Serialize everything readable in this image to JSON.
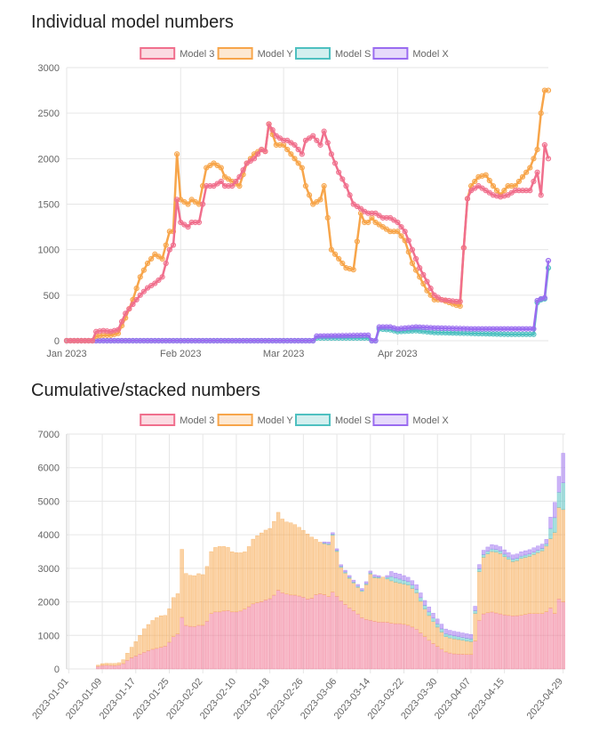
{
  "section1": {
    "title": "Individual model numbers"
  },
  "section2": {
    "title": "Cumulative/stacked numbers"
  },
  "colors": {
    "Model 3": "#f06f8d",
    "Model Y": "#f7a54a",
    "Model S": "#4ec0c0",
    "Model X": "#9a6cf0"
  },
  "chart_data": [
    {
      "type": "line",
      "title": "Individual model numbers",
      "x_start": "2023-01-01",
      "x_end": "2023-04-29",
      "x_tick_labels": [
        "Jan 2023",
        "Feb 2023",
        "Mar 2023",
        "Apr 2023"
      ],
      "x_tick_days": [
        0,
        31,
        59,
        90
      ],
      "ylim": [
        0,
        3000
      ],
      "y_ticks": [
        0,
        500,
        1000,
        1500,
        2000,
        2500,
        3000
      ],
      "legend": [
        "Model 3",
        "Model Y",
        "Model S",
        "Model X"
      ],
      "series": [
        {
          "name": "Model 3",
          "keypoints": [
            [
              0,
              0
            ],
            [
              7,
              0
            ],
            [
              8,
              100
            ],
            [
              10,
              110
            ],
            [
              12,
              100
            ],
            [
              14,
              120
            ],
            [
              16,
              300
            ],
            [
              18,
              400
            ],
            [
              20,
              500
            ],
            [
              22,
              580
            ],
            [
              24,
              630
            ],
            [
              26,
              700
            ],
            [
              28,
              1000
            ],
            [
              29,
              1050
            ],
            [
              30,
              1550
            ],
            [
              31,
              1300
            ],
            [
              33,
              1250
            ],
            [
              34,
              1300
            ],
            [
              36,
              1300
            ],
            [
              38,
              1700
            ],
            [
              40,
              1700
            ],
            [
              42,
              1750
            ],
            [
              43,
              1700
            ],
            [
              45,
              1700
            ],
            [
              47,
              1800
            ],
            [
              49,
              1950
            ],
            [
              51,
              2000
            ],
            [
              53,
              2100
            ],
            [
              54,
              2080
            ],
            [
              55,
              2380
            ],
            [
              57,
              2250
            ],
            [
              59,
              2200
            ],
            [
              60,
              2200
            ],
            [
              62,
              2150
            ],
            [
              64,
              2050
            ],
            [
              65,
              2200
            ],
            [
              67,
              2250
            ],
            [
              69,
              2150
            ],
            [
              70,
              2300
            ],
            [
              72,
              2050
            ],
            [
              74,
              1850
            ],
            [
              76,
              1700
            ],
            [
              78,
              1500
            ],
            [
              80,
              1450
            ],
            [
              81,
              1420
            ],
            [
              82,
              1400
            ],
            [
              83,
              1400
            ],
            [
              84,
              1400
            ],
            [
              86,
              1350
            ],
            [
              88,
              1350
            ],
            [
              90,
              1300
            ],
            [
              92,
              1200
            ],
            [
              94,
              1000
            ],
            [
              96,
              800
            ],
            [
              98,
              650
            ],
            [
              100,
              500
            ],
            [
              102,
              450
            ],
            [
              104,
              440
            ],
            [
              106,
              430
            ],
            [
              107,
              430
            ],
            [
              108,
              1020
            ],
            [
              109,
              1560
            ],
            [
              110,
              1650
            ],
            [
              112,
              1700
            ],
            [
              114,
              1650
            ],
            [
              116,
              1600
            ],
            [
              118,
              1580
            ],
            [
              120,
              1600
            ],
            [
              122,
              1650
            ],
            [
              124,
              1650
            ],
            [
              126,
              1650
            ],
            [
              128,
              1850
            ],
            [
              129,
              1600
            ],
            [
              130,
              2150
            ],
            [
              131,
              2000
            ]
          ]
        },
        {
          "name": "Model Y",
          "keypoints": [
            [
              0,
              0
            ],
            [
              7,
              0
            ],
            [
              8,
              50
            ],
            [
              10,
              60
            ],
            [
              12,
              60
            ],
            [
              14,
              80
            ],
            [
              16,
              250
            ],
            [
              18,
              450
            ],
            [
              20,
              700
            ],
            [
              22,
              850
            ],
            [
              24,
              950
            ],
            [
              26,
              900
            ],
            [
              28,
              1200
            ],
            [
              29,
              1200
            ],
            [
              30,
              2050
            ],
            [
              31,
              1550
            ],
            [
              33,
              1500
            ],
            [
              34,
              1550
            ],
            [
              36,
              1500
            ],
            [
              38,
              1900
            ],
            [
              40,
              1950
            ],
            [
              42,
              1900
            ],
            [
              43,
              1800
            ],
            [
              45,
              1750
            ],
            [
              47,
              1700
            ],
            [
              49,
              1950
            ],
            [
              51,
              2050
            ],
            [
              53,
              2100
            ],
            [
              54,
              2080
            ],
            [
              55,
              2380
            ],
            [
              57,
              2150
            ],
            [
              59,
              2150
            ],
            [
              60,
              2100
            ],
            [
              62,
              2000
            ],
            [
              64,
              1900
            ],
            [
              65,
              1700
            ],
            [
              67,
              1500
            ],
            [
              69,
              1550
            ],
            [
              70,
              1700
            ],
            [
              72,
              1000
            ],
            [
              74,
              900
            ],
            [
              76,
              800
            ],
            [
              78,
              780
            ],
            [
              80,
              1400
            ],
            [
              81,
              1300
            ],
            [
              82,
              1300
            ],
            [
              83,
              1350
            ],
            [
              84,
              1300
            ],
            [
              86,
              1250
            ],
            [
              88,
              1200
            ],
            [
              90,
              1200
            ],
            [
              92,
              1100
            ],
            [
              94,
              850
            ],
            [
              96,
              700
            ],
            [
              98,
              550
            ],
            [
              100,
              450
            ],
            [
              102,
              450
            ],
            [
              104,
              420
            ],
            [
              106,
              390
            ],
            [
              107,
              380
            ],
            [
              108,
              1020
            ],
            [
              109,
              1560
            ],
            [
              110,
              1700
            ],
            [
              112,
              1800
            ],
            [
              114,
              1820
            ],
            [
              116,
              1700
            ],
            [
              118,
              1600
            ],
            [
              120,
              1700
            ],
            [
              122,
              1700
            ],
            [
              124,
              1800
            ],
            [
              126,
              1900
            ],
            [
              128,
              2100
            ],
            [
              129,
              2500
            ],
            [
              130,
              2750
            ]
          ]
        },
        {
          "name": "Model S",
          "keypoints": [
            [
              0,
              0
            ],
            [
              67,
              0
            ],
            [
              68,
              30
            ],
            [
              82,
              30
            ],
            [
              83,
              0
            ],
            [
              84,
              0
            ],
            [
              85,
              130
            ],
            [
              88,
              120
            ],
            [
              90,
              100
            ],
            [
              95,
              110
            ],
            [
              100,
              90
            ],
            [
              110,
              80
            ],
            [
              120,
              70
            ],
            [
              127,
              70
            ],
            [
              128,
              420
            ],
            [
              129,
              450
            ],
            [
              130,
              460
            ],
            [
              131,
              800
            ]
          ]
        },
        {
          "name": "Model X",
          "keypoints": [
            [
              0,
              0
            ],
            [
              67,
              0
            ],
            [
              68,
              50
            ],
            [
              82,
              60
            ],
            [
              83,
              0
            ],
            [
              84,
              0
            ],
            [
              85,
              150
            ],
            [
              88,
              150
            ],
            [
              90,
              130
            ],
            [
              95,
              150
            ],
            [
              100,
              140
            ],
            [
              110,
              130
            ],
            [
              120,
              130
            ],
            [
              127,
              130
            ],
            [
              128,
              440
            ],
            [
              129,
              460
            ],
            [
              130,
              470
            ],
            [
              131,
              880
            ]
          ]
        }
      ]
    },
    {
      "type": "bar",
      "stacked": true,
      "title": "Cumulative/stacked numbers",
      "categories_start": "2023-01-01",
      "categories_end": "2023-04-29",
      "x_tick_labels": [
        "2023-01-01",
        "2023-01-09",
        "2023-01-17",
        "2023-01-25",
        "2023-02-02",
        "2023-02-10",
        "2023-02-18",
        "2023-02-26",
        "2023-03-06",
        "2023-03-14",
        "2023-03-22",
        "2023-03-30",
        "2023-04-07",
        "2023-04-15",
        "2023-04-29"
      ],
      "x_tick_days": [
        0,
        8,
        16,
        24,
        32,
        40,
        48,
        56,
        64,
        72,
        80,
        88,
        96,
        104,
        118
      ],
      "ylim": [
        0,
        7000
      ],
      "y_ticks": [
        0,
        1000,
        2000,
        3000,
        4000,
        5000,
        6000,
        7000
      ],
      "legend": [
        "Model 3",
        "Model Y",
        "Model S",
        "Model X"
      ],
      "series_source": "same daily values as the line chart, stacked",
      "bar_day_last": 118
    }
  ]
}
